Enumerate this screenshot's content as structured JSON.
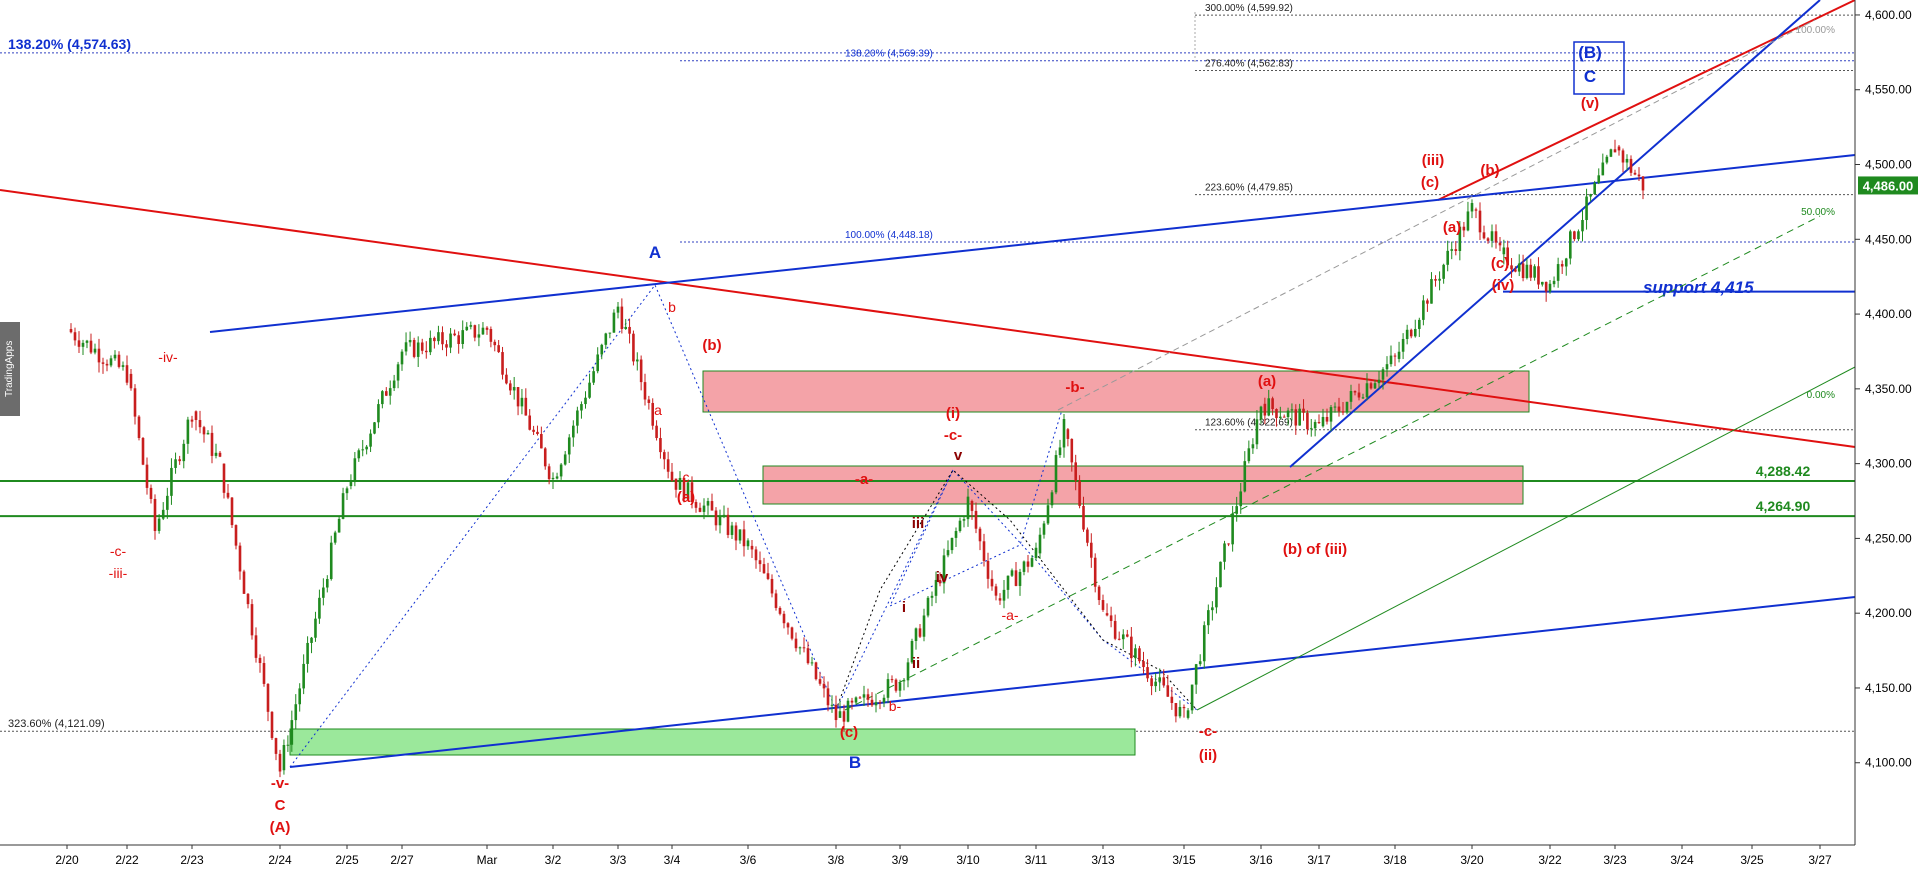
{
  "watermark": "TradingApps",
  "chart_data": {
    "type": "candlestick",
    "x_tick_labels": [
      "2/20",
      "2/22",
      "2/23",
      "2/24",
      "2/25",
      "2/27",
      "Mar",
      "3/2",
      "3/3",
      "3/4",
      "3/6",
      "3/8",
      "3/9",
      "3/10",
      "3/11",
      "3/13",
      "3/15",
      "3/16",
      "3/17",
      "3/18",
      "3/20",
      "3/22",
      "3/23",
      "3/24",
      "3/25",
      "3/27"
    ],
    "y_ticks": [
      4100,
      4150,
      4200,
      4250,
      4300,
      4350,
      4400,
      4450,
      4500,
      4550,
      4600
    ],
    "y_tick_labels": [
      "4,100.00",
      "4,150.00",
      "4,200.00",
      "4,250.00",
      "4,300.00",
      "4,350.00",
      "4,400.00",
      "4,450.00",
      "4,500.00",
      "4,550.00",
      "4,600.00"
    ],
    "ylim": [
      4045,
      4610
    ],
    "last_price": "4,486.00",
    "price_path": [
      [
        "2/20",
        4390
      ],
      [
        "2/22",
        4360
      ],
      [
        "2/22",
        4255
      ],
      [
        "2/23",
        4335
      ],
      [
        "2/23",
        4300
      ],
      [
        "2/24",
        4095
      ],
      [
        "2/25",
        4285
      ],
      [
        "2/27",
        4375
      ],
      [
        "Mar",
        4390
      ],
      [
        "3/2",
        4290
      ],
      [
        "3/3",
        4405
      ],
      [
        "3/4",
        4290
      ],
      [
        "3/6",
        4245
      ],
      [
        "3/8",
        4130
      ],
      [
        "3/9",
        4155
      ],
      [
        "3/10",
        4275
      ],
      [
        "3/10",
        4210
      ],
      [
        "3/11",
        4240
      ],
      [
        "3/11",
        4323
      ],
      [
        "3/13",
        4200
      ],
      [
        "3/15",
        4130
      ],
      [
        "3/16",
        4340
      ],
      [
        "3/17",
        4325
      ],
      [
        "3/18",
        4370
      ],
      [
        "3/20",
        4470
      ],
      [
        "3/20",
        4440
      ],
      [
        "3/22",
        4420
      ],
      [
        "3/23",
        4512
      ],
      [
        "3/23",
        4486
      ]
    ],
    "levels": [
      {
        "label": "4,288.42",
        "value": 4288.42
      },
      {
        "label": "4,264.90",
        "value": 4264.9
      }
    ],
    "support_label": "support 4,415",
    "fib_labels": [
      {
        "text": "138.20% (4,574.63)",
        "value": 4574.63
      },
      {
        "text": "138.20% (4,569.39)",
        "value": 4569.39
      },
      {
        "text": "300.00% (4,599.92)",
        "value": 4599.92
      },
      {
        "text": "276.40% (4,562.83)",
        "value": 4562.83
      },
      {
        "text": "223.60% (4,479.85)",
        "value": 4479.85
      },
      {
        "text": "100.00% (4,448.18)",
        "value": 4448.18
      },
      {
        "text": "123.60% (4,322.69)",
        "value": 4322.69
      },
      {
        "text": "323.60% (4,121.09)",
        "value": 4121.09
      }
    ],
    "fan_labels": [
      "100.00%",
      "50.00%",
      "0.00%"
    ],
    "wave_labels": [
      {
        "text": "A",
        "color": "blue"
      },
      {
        "text": "B",
        "color": "blue"
      },
      {
        "text": "(B)",
        "color": "blue"
      },
      {
        "text": "C",
        "color": "blue"
      },
      {
        "text": "-iv-",
        "color": "red"
      },
      {
        "text": "-c-",
        "color": "red"
      },
      {
        "text": "-iii-",
        "color": "red"
      },
      {
        "text": "-v-",
        "color": "red"
      },
      {
        "text": "C",
        "color": "red"
      },
      {
        "text": "(A)",
        "color": "red"
      },
      {
        "text": "b",
        "color": "red"
      },
      {
        "text": "(b)",
        "color": "red"
      },
      {
        "text": "a",
        "color": "red"
      },
      {
        "text": "c",
        "color": "red"
      },
      {
        "text": "(a)",
        "color": "red"
      },
      {
        "text": "-b-",
        "color": "red"
      },
      {
        "text": "-a-",
        "color": "red"
      },
      {
        "text": "(i)",
        "color": "red"
      },
      {
        "text": "-c-",
        "color": "red"
      },
      {
        "text": "v",
        "color": "darkred"
      },
      {
        "text": "iii",
        "color": "darkred"
      },
      {
        "text": "iv",
        "color": "darkred"
      },
      {
        "text": "i",
        "color": "darkred"
      },
      {
        "text": "ii",
        "color": "darkred"
      },
      {
        "text": "-a-",
        "color": "red"
      },
      {
        "text": "b-",
        "color": "red"
      },
      {
        "text": "(c)",
        "color": "red"
      },
      {
        "text": "-c-",
        "color": "red"
      },
      {
        "text": "(ii)",
        "color": "red"
      },
      {
        "text": "(b) of (iii)",
        "color": "red"
      },
      {
        "text": "(a)",
        "color": "red"
      },
      {
        "text": "(iii)",
        "color": "red"
      },
      {
        "text": "(c)",
        "color": "red"
      },
      {
        "text": "(b)",
        "color": "red"
      },
      {
        "text": "(a)",
        "color": "red"
      },
      {
        "text": "(c)",
        "color": "red"
      },
      {
        "text": "(iv)",
        "color": "red"
      },
      {
        "text": "(v)",
        "color": "red"
      }
    ],
    "colors": {
      "up": "#1f8a1f",
      "down": "#c81e1e",
      "blue": "#1030d0",
      "red": "#e01010",
      "green": "#1f8a1f",
      "zone_red": "#f4a3a8",
      "zone_green": "#9be89b"
    }
  }
}
